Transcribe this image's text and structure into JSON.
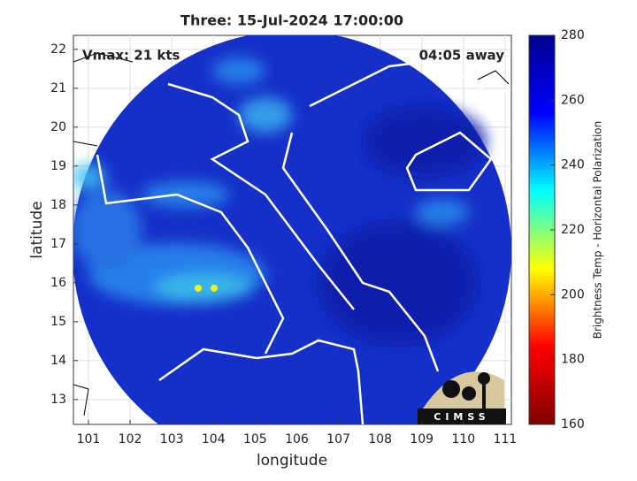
{
  "chart_data": {
    "type": "map",
    "title": "Three: 15-Jul-2024 17:00:00",
    "annotations": [
      "Vmax: 21 kts",
      "04:05 away"
    ],
    "x_label": "longitude",
    "y_label": "latitude",
    "xlim": [
      100.64,
      111.15
    ],
    "xticks": [
      101,
      102,
      103,
      104,
      105,
      106,
      107,
      108,
      109,
      110,
      111
    ],
    "ylim": [
      12.36,
      22.36
    ],
    "yticks": [
      13,
      14,
      15,
      16,
      17,
      18,
      19,
      20,
      21,
      22
    ],
    "grid": true,
    "colorbar": {
      "label": "Brightness Temp - Horizontal Polarization",
      "lim": [
        160,
        280
      ],
      "ticks": [
        160,
        180,
        200,
        220,
        240,
        260,
        280
      ],
      "colors": [
        "#800000",
        "#ff0000",
        "#ffff00",
        "#00ffff",
        "#0000ff",
        "#00008f"
      ]
    },
    "logo": "CIMSS"
  }
}
